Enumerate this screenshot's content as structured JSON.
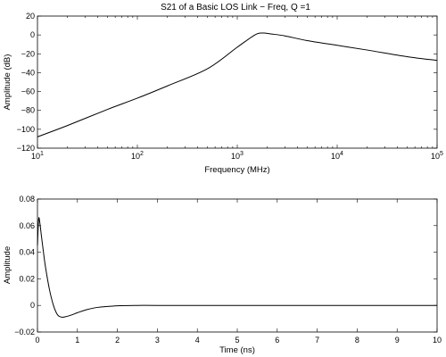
{
  "chart_data": [
    {
      "type": "line",
      "title": "S21 of a Basic LOS Link − Freq, Q =1",
      "xlabel": "Frequency (MHz)",
      "ylabel": "Amplitude (dB)",
      "xscale": "log",
      "xlim": [
        10,
        100000
      ],
      "ylim": [
        -120,
        20
      ],
      "xticks": [
        10,
        100,
        1000,
        10000,
        100000
      ],
      "xtick_labels": [
        {
          "base": "10",
          "exp": "1"
        },
        {
          "base": "10",
          "exp": "2"
        },
        {
          "base": "10",
          "exp": "3"
        },
        {
          "base": "10",
          "exp": "4"
        },
        {
          "base": "10",
          "exp": "5"
        }
      ],
      "yticks": [
        20,
        0,
        -20,
        -40,
        -60,
        -80,
        -100,
        -120
      ],
      "ytick_labels": [
        "20",
        "0",
        "−20",
        "−40",
        "−60",
        "−80",
        "−100",
        "−120"
      ],
      "grid": false,
      "series": [
        {
          "x": [
            10,
            20,
            50,
            100,
            200,
            500,
            1000,
            1500,
            1800,
            2200,
            3000,
            5000,
            10000,
            20000,
            50000,
            100000
          ],
          "y": [
            -108,
            -96,
            -79,
            -67,
            -54,
            -36,
            -13,
            0,
            2,
            1,
            -1,
            -6,
            -11,
            -16,
            -23,
            -27
          ]
        }
      ]
    },
    {
      "type": "line",
      "title": "",
      "xlabel": "Time (ns)",
      "ylabel": "Amplitude",
      "xscale": "linear",
      "xlim": [
        0,
        10
      ],
      "ylim": [
        -0.02,
        0.08
      ],
      "xticks": [
        0,
        1,
        2,
        3,
        4,
        5,
        6,
        7,
        8,
        9,
        10
      ],
      "xtick_labels": [
        "0",
        "1",
        "2",
        "3",
        "4",
        "5",
        "6",
        "7",
        "8",
        "9",
        "10"
      ],
      "yticks": [
        0.08,
        0.06,
        0.04,
        0.02,
        0,
        -0.02
      ],
      "ytick_labels": [
        "0.08",
        "0.06",
        "0.04",
        "0.02",
        "0",
        "−0.02"
      ],
      "grid": false,
      "series": [
        {
          "x": [
            0,
            0.03,
            0.06,
            0.1,
            0.15,
            0.2,
            0.3,
            0.4,
            0.5,
            0.6,
            0.7,
            0.85,
            1.0,
            1.2,
            1.5,
            2.0,
            2.5,
            3,
            4,
            5,
            6,
            7,
            8,
            9,
            10
          ],
          "y": [
            0.045,
            0.065,
            0.062,
            0.052,
            0.04,
            0.029,
            0.012,
            0.0,
            -0.007,
            -0.0088,
            -0.0085,
            -0.0072,
            -0.0055,
            -0.0035,
            -0.0015,
            -0.0003,
            0,
            0,
            0,
            0,
            0,
            0,
            0,
            0,
            0
          ]
        }
      ]
    }
  ]
}
